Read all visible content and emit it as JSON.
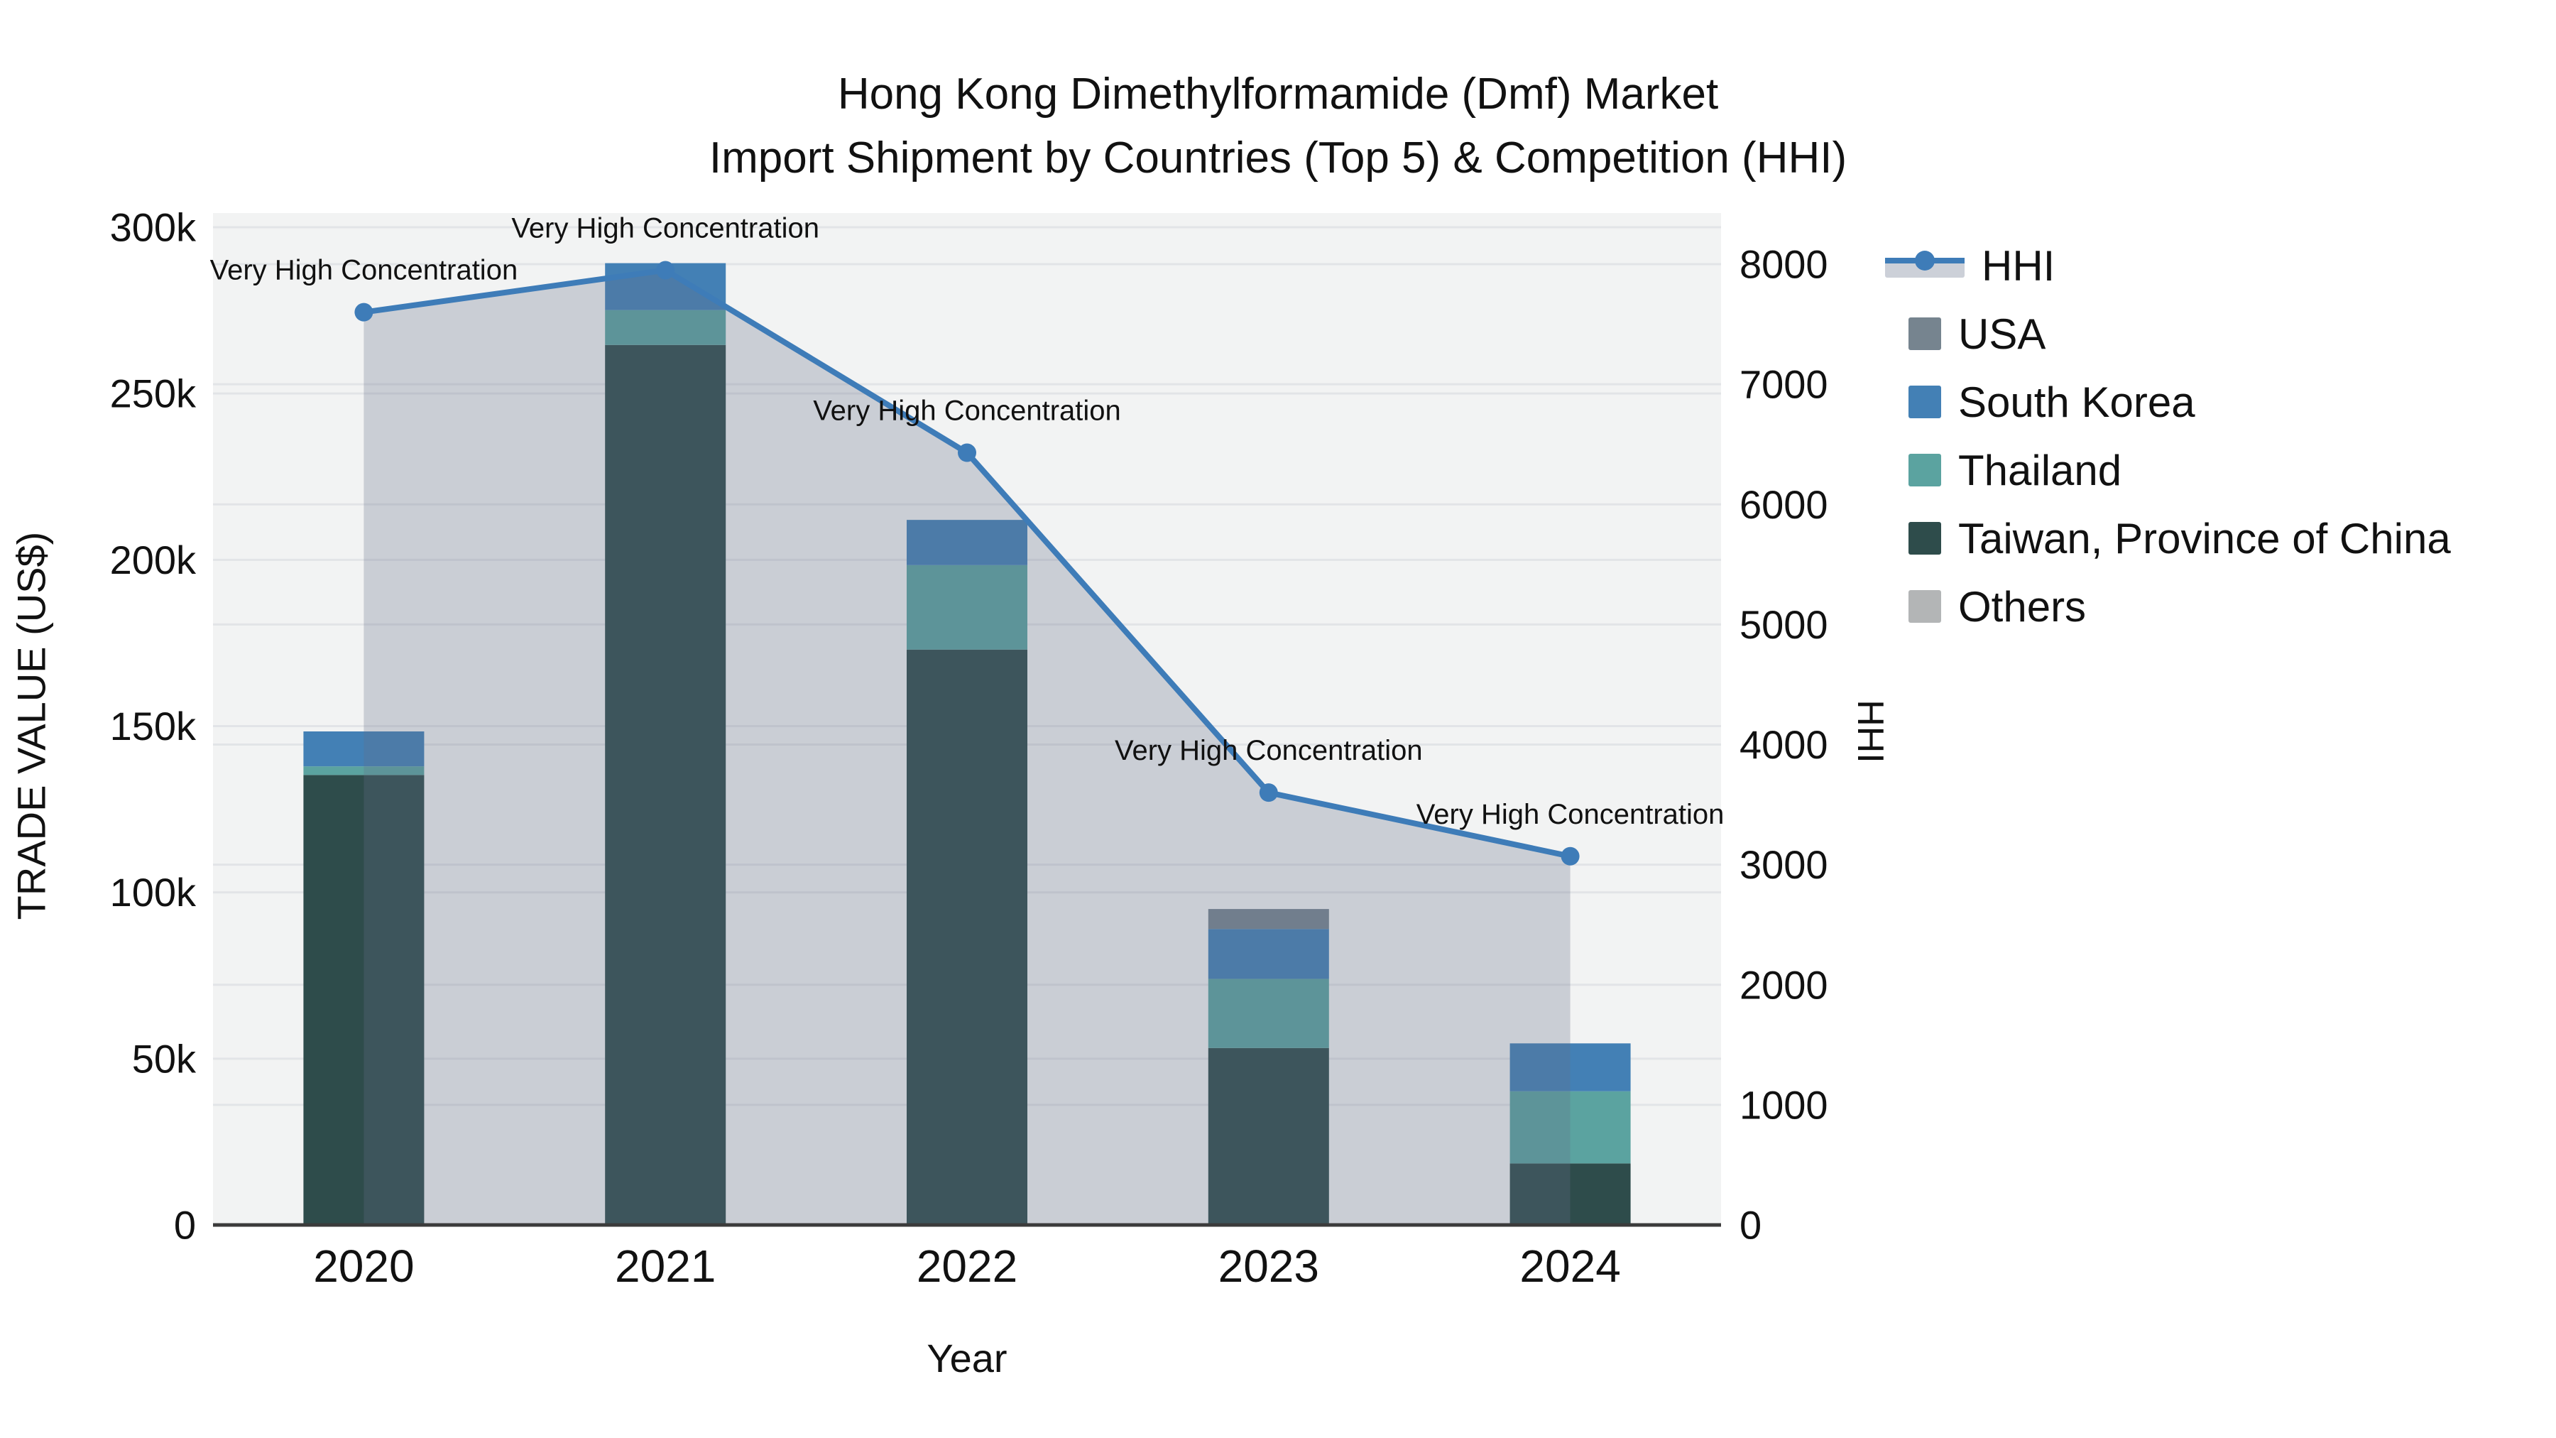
{
  "title": {
    "line1": "Hong Kong Dimethylformamide (Dmf) Market",
    "line2": "Import Shipment by Countries (Top 5) & Competition (HHI)"
  },
  "axes": {
    "x_title": "Year",
    "left_title": "TRADE VALUE (US$)",
    "right_title": "HHI"
  },
  "annotation_label": "Very High Concentration",
  "legend": {
    "items": [
      {
        "label": "HHI",
        "type": "line",
        "color": "#3e7cb8"
      },
      {
        "label": "USA",
        "type": "swatch",
        "color": "#76848f"
      },
      {
        "label": "South Korea",
        "type": "swatch",
        "color": "#4380b5"
      },
      {
        "label": "Thailand",
        "type": "swatch",
        "color": "#5ba3a0"
      },
      {
        "label": "Taiwan, Province of China",
        "type": "swatch",
        "color": "#2e4c4b"
      },
      {
        "label": "Others",
        "type": "swatch",
        "color": "#b3b5b6"
      }
    ]
  },
  "chart_data": {
    "type": "bar",
    "subtype": "stacked-bar-with-line",
    "title": "Hong Kong Dimethylformamide (Dmf) Market Import Shipment by Countries (Top 5) & Competition (HHI)",
    "xlabel": "Year",
    "categories": [
      "2020",
      "2021",
      "2022",
      "2023",
      "2024"
    ],
    "bar_series": [
      {
        "name": "Taiwan, Province of China",
        "color": "#2e4c4b",
        "values": [
          135300,
          264600,
          173000,
          53200,
          18500
        ]
      },
      {
        "name": "Thailand",
        "color": "#5ba3a0",
        "values": [
          2600,
          10500,
          25400,
          20800,
          21700
        ]
      },
      {
        "name": "South Korea",
        "color": "#4380b5",
        "values": [
          10500,
          14100,
          13600,
          15000,
          14400
        ]
      },
      {
        "name": "USA",
        "color": "#76848f",
        "values": [
          0,
          0,
          0,
          6000,
          0
        ]
      },
      {
        "name": "Others",
        "color": "#b3b5b6",
        "values": [
          0,
          0,
          0,
          0,
          0
        ]
      }
    ],
    "bar_totals": [
      148400,
      289200,
      212000,
      95000,
      54600
    ],
    "line_series": {
      "name": "HHI",
      "color": "#3e7cb8",
      "area_fill": "rgba(100,110,135,0.28)",
      "values": [
        7600,
        7950,
        6430,
        3600,
        3070
      ],
      "point_annotations": [
        "Very High Concentration",
        "Very High Concentration",
        "Very High Concentration",
        "Very High Concentration",
        "Very High Concentration"
      ]
    },
    "y_left": {
      "label": "TRADE VALUE (US$)",
      "min": 0,
      "max": 300000,
      "ticks": [
        0,
        50000,
        100000,
        150000,
        200000,
        250000,
        300000
      ],
      "tick_labels": [
        "0",
        "50k",
        "100k",
        "150k",
        "200k",
        "250k",
        "300k"
      ]
    },
    "y_right": {
      "label": "HHI",
      "min": 0,
      "max": 8000,
      "ticks": [
        0,
        1000,
        2000,
        3000,
        4000,
        5000,
        6000,
        7000,
        8000
      ],
      "tick_labels": [
        "0",
        "1000",
        "2000",
        "3000",
        "4000",
        "5000",
        "6000",
        "7000",
        "8000"
      ]
    },
    "legend_position": "right",
    "grid": true,
    "plot_bg": "#f2f3f3",
    "grid_color": "#e2e4e7",
    "axis_line_color": "#3b3b3b",
    "text_color": "#111111"
  }
}
